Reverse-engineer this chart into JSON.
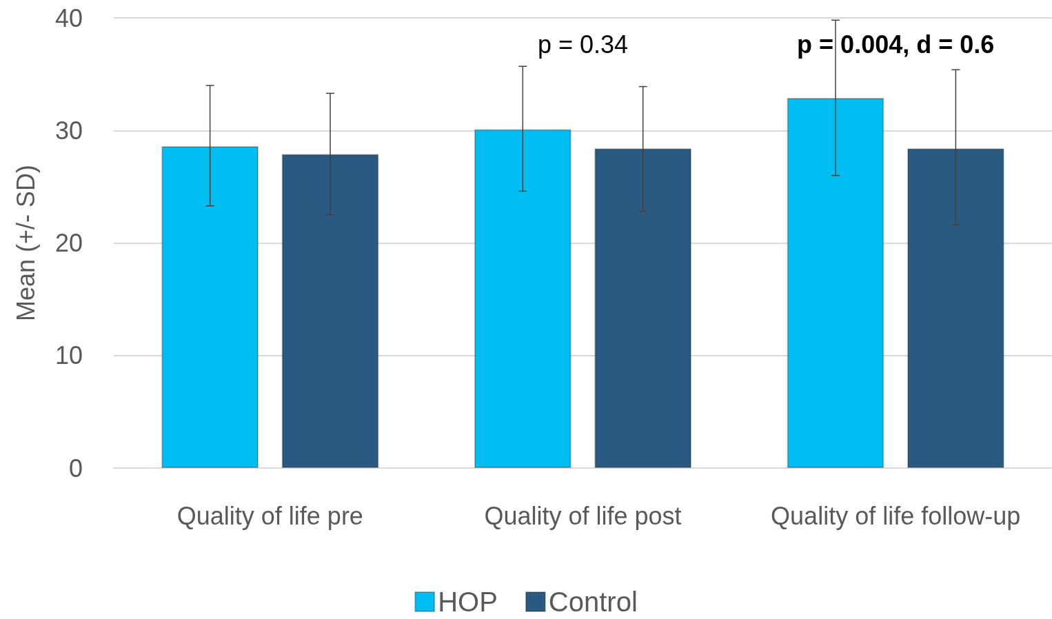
{
  "chart_data": {
    "type": "bar",
    "ylabel": "Mean (+/- SD)",
    "categories": [
      "Quality of life pre",
      "Quality of life post",
      "Quality of life follow-up"
    ],
    "series": [
      {
        "name": "HOP",
        "color": "#00bef2",
        "values": [
          28.6,
          30.1,
          32.9
        ],
        "errors": [
          [
            23.3,
            34.0
          ],
          [
            24.6,
            35.7
          ],
          [
            26.0,
            39.8
          ]
        ]
      },
      {
        "name": "Control",
        "color": "#2a5a82",
        "values": [
          27.9,
          28.4,
          28.4
        ],
        "errors": [
          [
            22.5,
            33.3
          ],
          [
            22.8,
            33.9
          ],
          [
            21.6,
            35.4
          ]
        ]
      }
    ],
    "ylim": [
      0,
      40
    ],
    "yticks": [
      0,
      10,
      20,
      30,
      40
    ],
    "grid": "y",
    "legend": "bottom",
    "annotations": [
      "p = 0.34",
      "p = 0.004, d = 0.6"
    ]
  }
}
